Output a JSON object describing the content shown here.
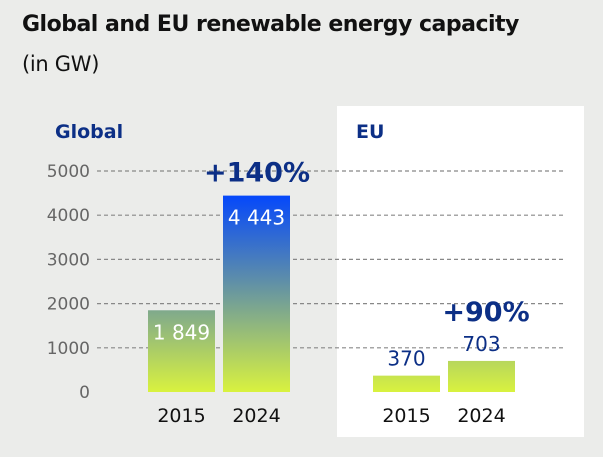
{
  "header": {
    "title": "Global and EU renewable energy capacity",
    "subtitle": "(in GW)"
  },
  "colors": {
    "background": "#ebecea",
    "panel": "#ffffff",
    "label_blue": "#0c2f86",
    "bar_top": "#0044ff",
    "bar_mid": "#5f8fa8",
    "bar_bottom": "#d9f23f",
    "grid": "#888888"
  },
  "chart_data": {
    "type": "bar",
    "title": "Global and EU renewable energy capacity",
    "subtitle": "(in GW)",
    "ylabel": "GW",
    "ylim": [
      0,
      5000
    ],
    "yticks": [
      0,
      1000,
      2000,
      3000,
      4000,
      5000
    ],
    "ytick_labels": [
      "0",
      "1000",
      "2000",
      "3000",
      "4000",
      "5000"
    ],
    "grid": true,
    "groups": [
      {
        "name": "Global",
        "categories": [
          "2015",
          "2024"
        ],
        "values": [
          1849,
          4443
        ],
        "value_labels": [
          "1 849",
          "4 443"
        ],
        "change_label": "+140%"
      },
      {
        "name": "EU",
        "categories": [
          "2015",
          "2024"
        ],
        "values": [
          370,
          703
        ],
        "value_labels": [
          "370",
          "703"
        ],
        "change_label": "+90%"
      }
    ]
  }
}
